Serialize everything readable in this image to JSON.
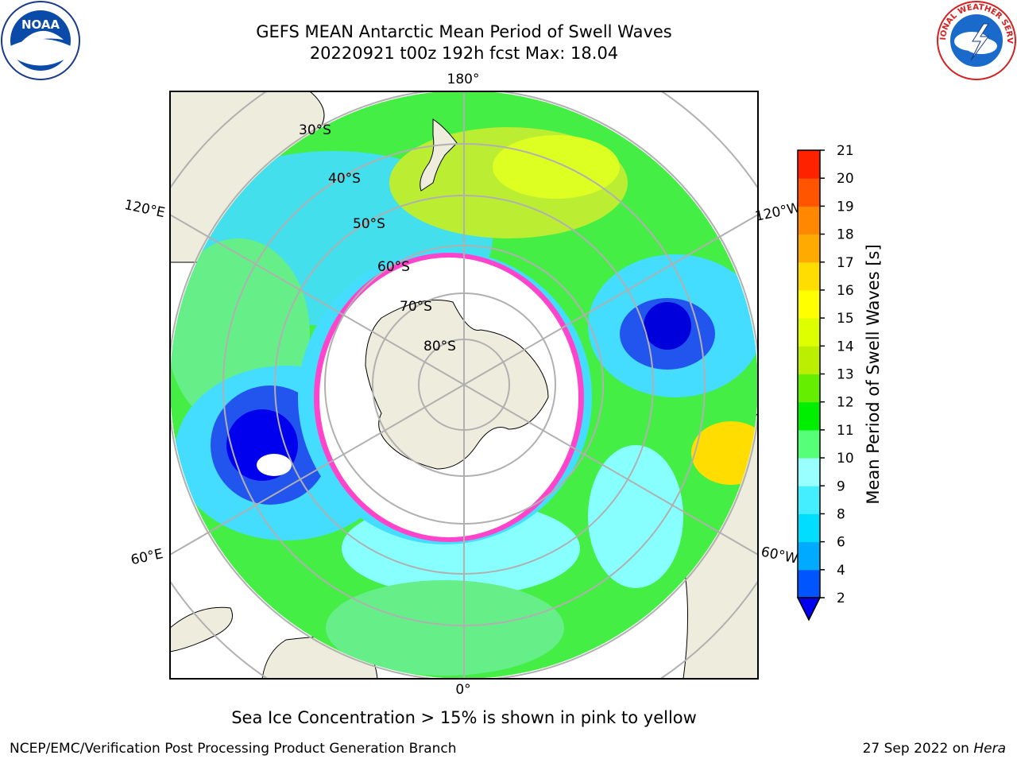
{
  "title": {
    "line1": "GEFS MEAN Antarctic Mean Period of Swell Waves",
    "line2": "20220921 t00z 192h fcst   Max: 18.04"
  },
  "logos": {
    "left": {
      "text": "NOAA",
      "icon": "noaa-logo"
    },
    "right": {
      "text": "NATIONAL WEATHER SERVICE",
      "icon": "nws-logo"
    }
  },
  "map": {
    "projection": "south-polar-stereographic",
    "lon_labels": {
      "top": "180°",
      "left_upper": "120°E",
      "right_upper": "120°W",
      "left_lower": "60°E",
      "right_lower": "60°W",
      "bottom": "0°"
    },
    "lat_labels": [
      "30°S",
      "40°S",
      "50°S",
      "60°S",
      "70°S",
      "80°S"
    ]
  },
  "colorbar": {
    "label": "Mean Period of Swell Waves [s]",
    "ticks": [
      "2",
      "4",
      "6",
      "8",
      "9",
      "10",
      "11",
      "12",
      "13",
      "14",
      "15",
      "16",
      "17",
      "18",
      "19",
      "20",
      "21"
    ],
    "colors": [
      "#0055ff",
      "#00aaff",
      "#00ddff",
      "#44eeff",
      "#99ffff",
      "#55ff77",
      "#00ee00",
      "#66ee00",
      "#bbee00",
      "#ddff00",
      "#ffff00",
      "#ffdd00",
      "#ffaa00",
      "#ff8800",
      "#ff5500",
      "#ff2200"
    ],
    "under_color": "#0000ee"
  },
  "note": "Sea Ice Concentration > 15% is shown in pink to yellow",
  "footer": {
    "left": "NCEP/EMC/Verification Post Processing Product Generation Branch",
    "right_date": "27 Sep 2022 on",
    "right_host": "Hera"
  }
}
